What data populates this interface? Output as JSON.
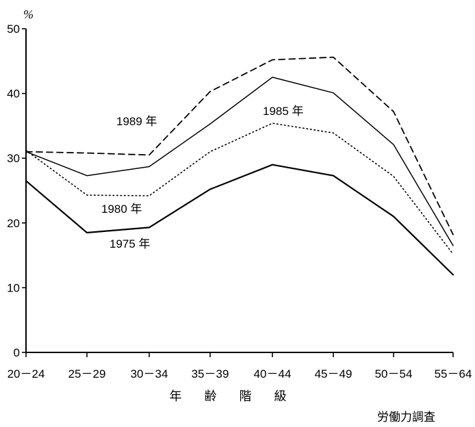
{
  "chart_data": {
    "type": "line",
    "ylabel": "%",
    "xlabel": "年 齢 階 級",
    "source": "労働力調査",
    "ylim": [
      0,
      50
    ],
    "yticks": [
      0,
      10,
      20,
      30,
      40,
      50
    ],
    "categories": [
      "20－24",
      "25－29",
      "30－34",
      "35－39",
      "40－44",
      "45－49",
      "50－54",
      "55－64"
    ],
    "series": [
      {
        "name": "1975 年",
        "style": "solid",
        "stroke_width": 2.2,
        "values": [
          26.5,
          18.5,
          19.3,
          25.2,
          29.0,
          27.3,
          21.0,
          12.0
        ]
      },
      {
        "name": "1980 年",
        "style": "dotted",
        "stroke_width": 1.6,
        "values": [
          31.2,
          24.3,
          24.2,
          31.0,
          35.4,
          33.9,
          27.2,
          15.2
        ]
      },
      {
        "name": "1985 年",
        "style": "solid",
        "stroke_width": 1.5,
        "values": [
          31.0,
          27.3,
          28.7,
          35.3,
          42.5,
          40.1,
          32.1,
          16.5
        ]
      },
      {
        "name": "1989 年",
        "style": "dashed",
        "stroke_width": 1.8,
        "values": [
          31.0,
          30.8,
          30.5,
          40.3,
          45.2,
          45.6,
          37.2,
          18.2
        ]
      }
    ]
  }
}
